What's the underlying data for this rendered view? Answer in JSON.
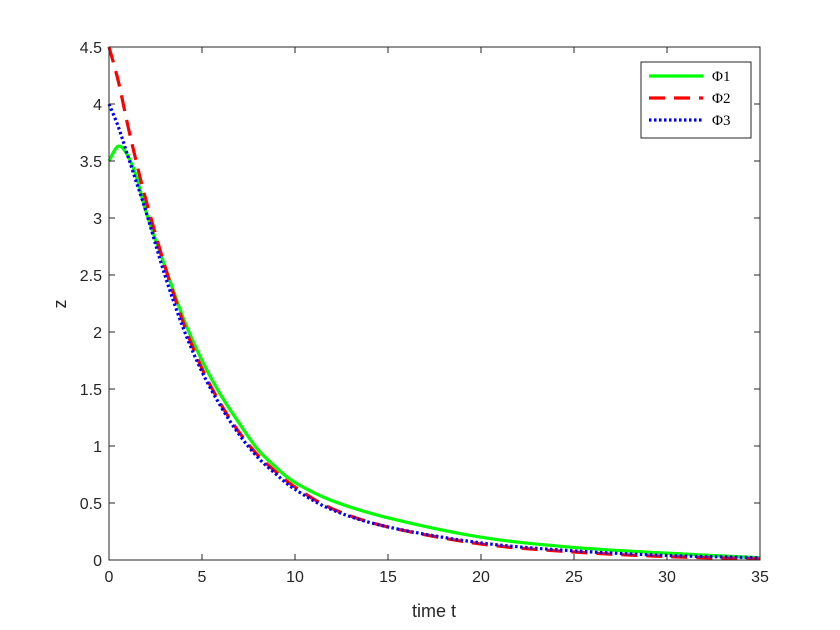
{
  "chart_data": {
    "type": "line",
    "title": "",
    "xlabel": "time t",
    "ylabel": "z",
    "xlim": [
      0,
      35
    ],
    "ylim": [
      0,
      4.5
    ],
    "x_ticks": [
      0,
      5,
      10,
      15,
      20,
      25,
      30,
      35
    ],
    "y_ticks": [
      0,
      0.5,
      1,
      1.5,
      2,
      2.5,
      3,
      3.5,
      4,
      4.5
    ],
    "grid": false,
    "legend_position": "top-right",
    "series": [
      {
        "name": "Φ1",
        "color": "#00ff00",
        "style": "solid",
        "points": [
          [
            0,
            3.5
          ],
          [
            0.5,
            3.63
          ],
          [
            1,
            3.55
          ],
          [
            1.5,
            3.35
          ],
          [
            2,
            3.05
          ],
          [
            3,
            2.58
          ],
          [
            4,
            2.12
          ],
          [
            5,
            1.75
          ],
          [
            6,
            1.45
          ],
          [
            7,
            1.2
          ],
          [
            8,
            0.97
          ],
          [
            9,
            0.81
          ],
          [
            10,
            0.68
          ],
          [
            12,
            0.52
          ],
          [
            15,
            0.37
          ],
          [
            20,
            0.2
          ],
          [
            25,
            0.11
          ],
          [
            30,
            0.06
          ],
          [
            35,
            0.02
          ]
        ]
      },
      {
        "name": "Φ2",
        "color": "#ff0000",
        "style": "dashed",
        "points": [
          [
            0,
            4.5
          ],
          [
            0.5,
            4.2
          ],
          [
            1,
            3.82
          ],
          [
            1.5,
            3.47
          ],
          [
            2,
            3.15
          ],
          [
            3,
            2.58
          ],
          [
            4,
            2.08
          ],
          [
            5,
            1.68
          ],
          [
            6,
            1.37
          ],
          [
            7,
            1.12
          ],
          [
            8,
            0.92
          ],
          [
            9,
            0.77
          ],
          [
            10,
            0.64
          ],
          [
            12,
            0.45
          ],
          [
            15,
            0.29
          ],
          [
            20,
            0.14
          ],
          [
            25,
            0.07
          ],
          [
            30,
            0.03
          ],
          [
            35,
            0.01
          ]
        ]
      },
      {
        "name": "Φ3",
        "color": "#0000ff",
        "style": "dotted",
        "points": [
          [
            0,
            4
          ],
          [
            0.5,
            3.8
          ],
          [
            1,
            3.55
          ],
          [
            1.5,
            3.3
          ],
          [
            2,
            3.05
          ],
          [
            3,
            2.5
          ],
          [
            4,
            2.03
          ],
          [
            5,
            1.65
          ],
          [
            6,
            1.35
          ],
          [
            7,
            1.1
          ],
          [
            8,
            0.9
          ],
          [
            9,
            0.75
          ],
          [
            10,
            0.62
          ],
          [
            12,
            0.44
          ],
          [
            15,
            0.29
          ],
          [
            20,
            0.15
          ],
          [
            25,
            0.08
          ],
          [
            30,
            0.04
          ],
          [
            35,
            0.02
          ]
        ]
      }
    ]
  }
}
